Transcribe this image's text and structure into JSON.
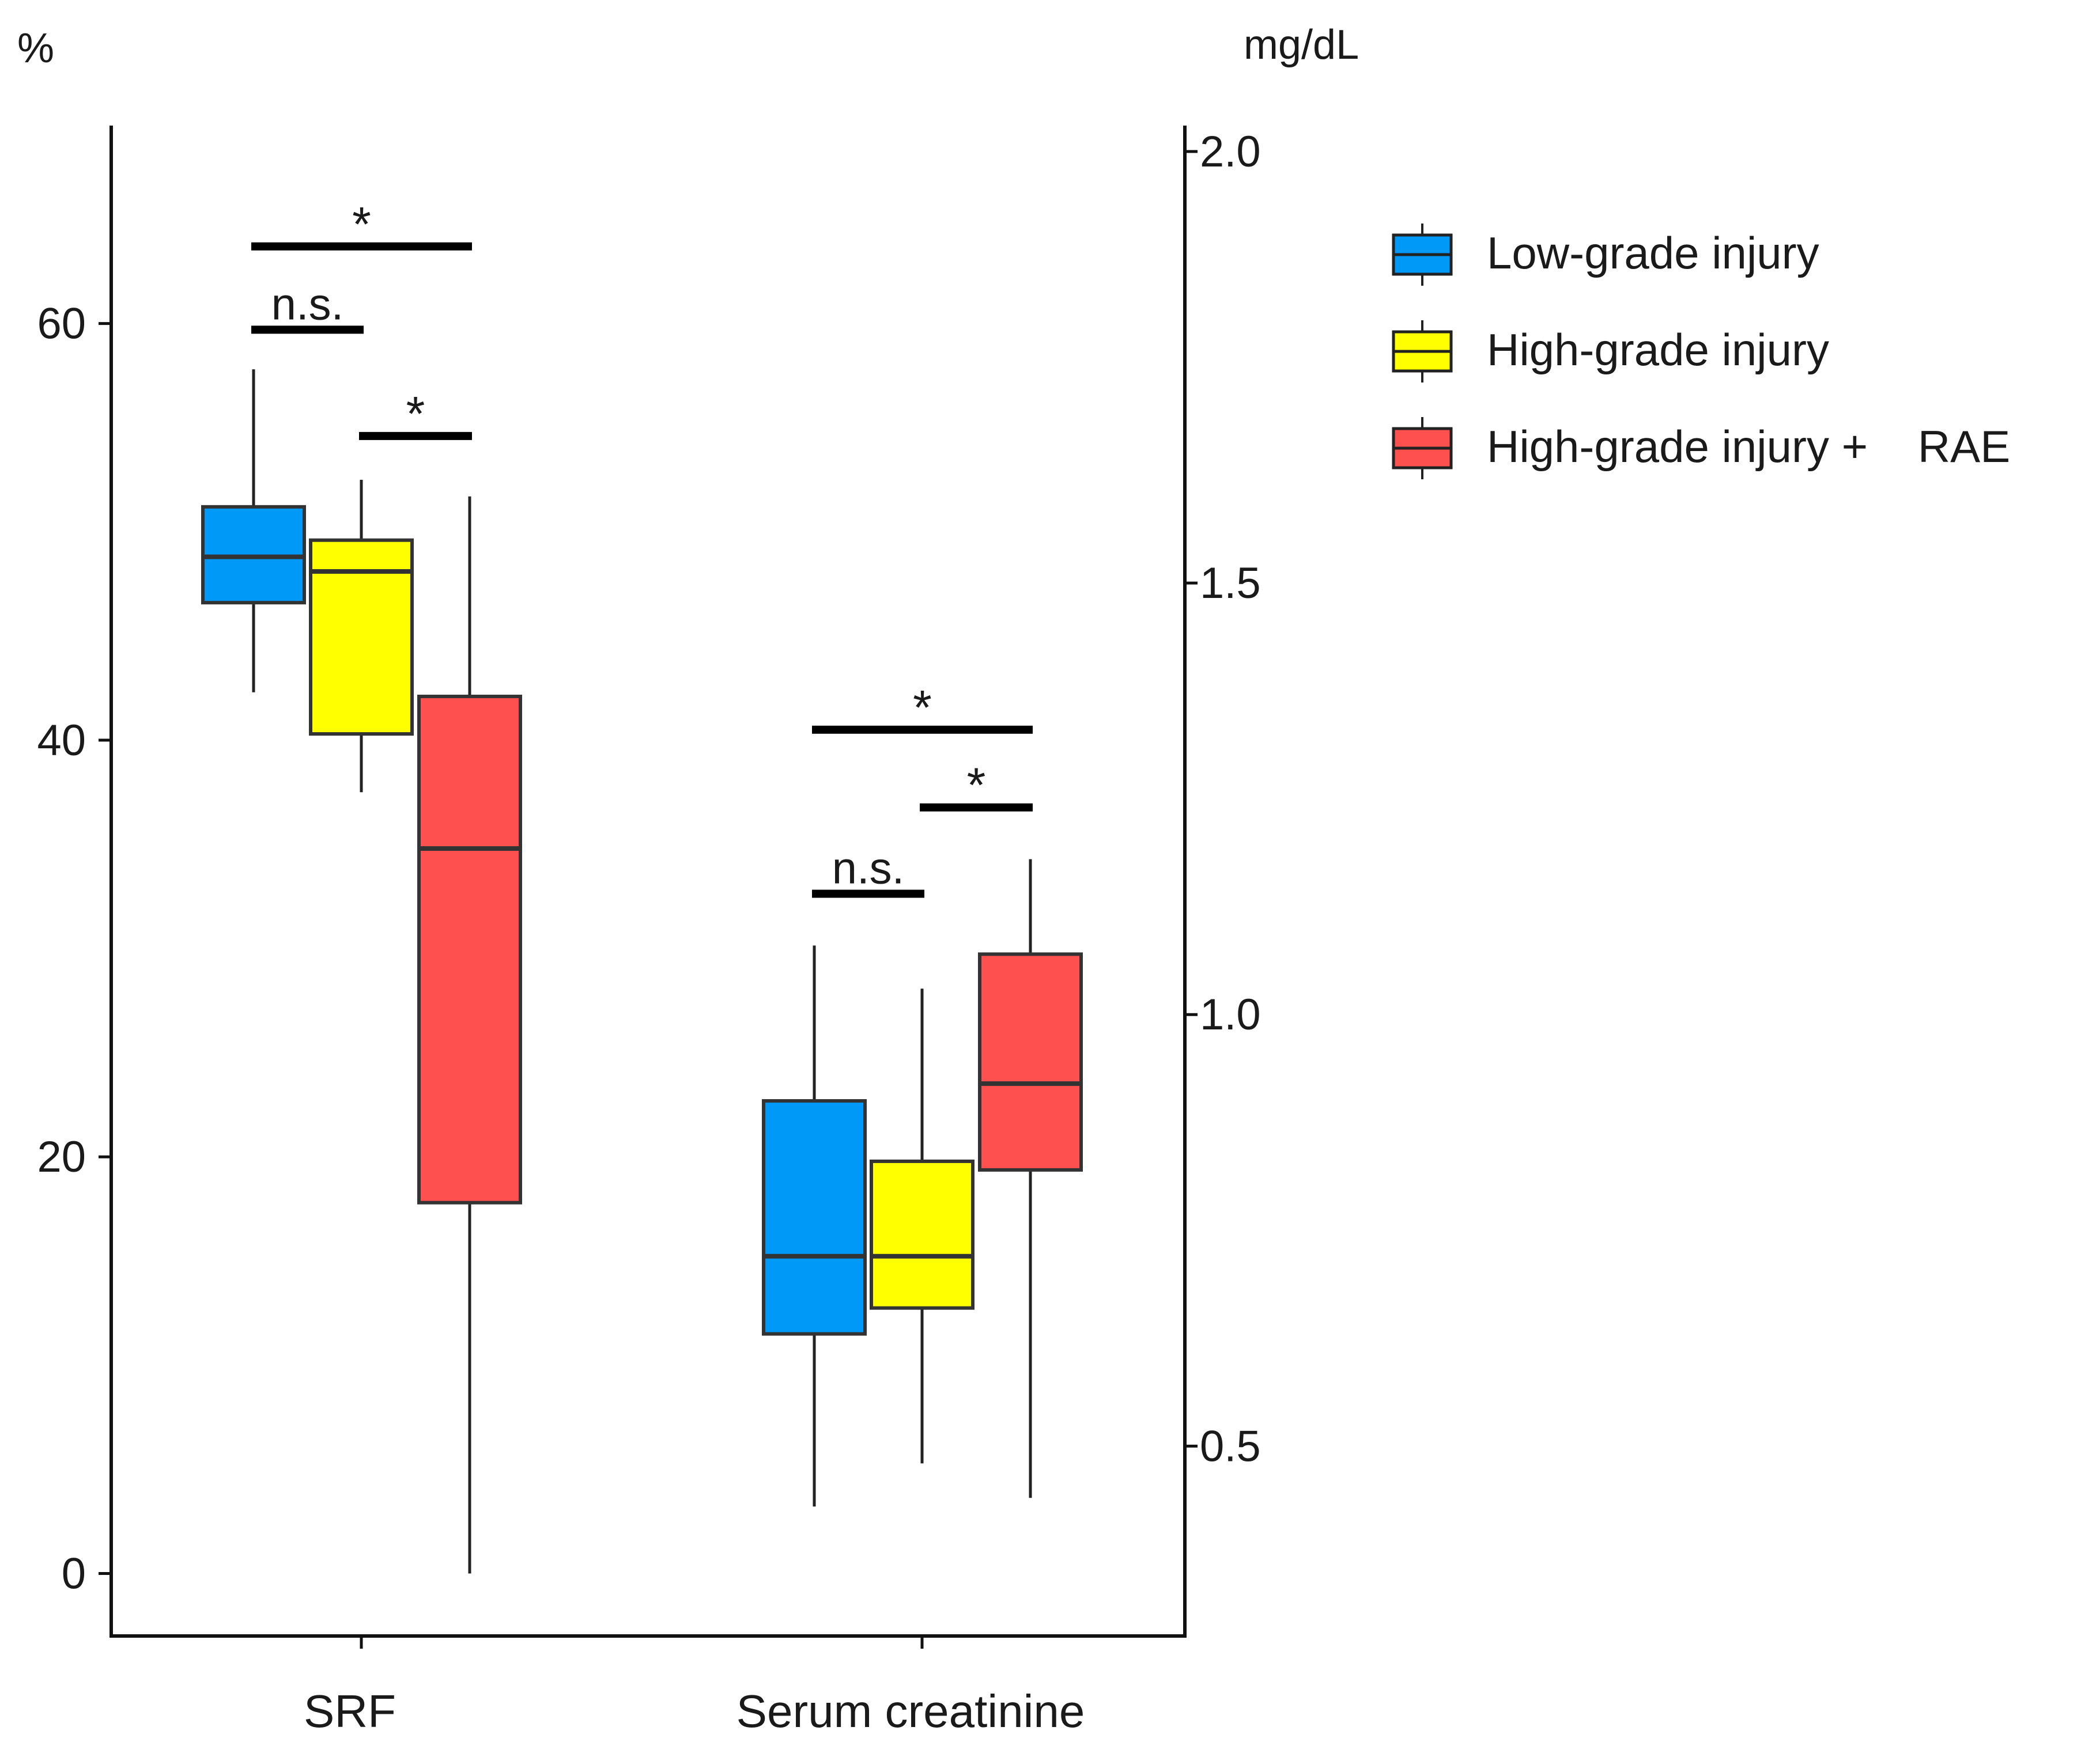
{
  "chart_data": {
    "type": "boxplot",
    "categories": [
      "SRF",
      "Serum creatinine"
    ],
    "left_axis": {
      "unit_label": "%",
      "ticks": [
        0,
        20,
        40,
        60
      ],
      "tick_labels": [
        "0",
        "20",
        "40",
        "60"
      ],
      "range": [
        -3,
        69.5
      ]
    },
    "right_axis": {
      "unit_label": "mg/dL",
      "ticks": [
        0.5,
        1.0,
        1.5,
        2.0
      ],
      "tick_labels": [
        "0.5",
        "1.0",
        "1.5",
        "2.0"
      ],
      "range": [
        0.28,
        2.03
      ]
    },
    "groups": [
      {
        "name": "Low-grade injury",
        "color": "#0099F7"
      },
      {
        "name": "High-grade injury",
        "color": "#FFFF00"
      },
      {
        "name": "High-grade injury +    RAE",
        "color": "#FF5050"
      }
    ],
    "boxes": [
      {
        "category": "SRF",
        "group": "Low-grade injury",
        "axis": "left",
        "min": 42.3,
        "q1": 46.6,
        "median": 48.8,
        "q3": 51.2,
        "max": 57.8
      },
      {
        "category": "SRF",
        "group": "High-grade injury",
        "axis": "left",
        "min": 37.5,
        "q1": 40.3,
        "median": 48.1,
        "q3": 49.6,
        "max": 52.5
      },
      {
        "category": "SRF",
        "group": "High-grade injury +    RAE",
        "axis": "left",
        "min": 0.0,
        "q1": 17.8,
        "median": 34.8,
        "q3": 42.1,
        "max": 51.7
      },
      {
        "category": "Serum creatinine",
        "group": "Low-grade injury",
        "axis": "right",
        "min": 0.43,
        "q1": 0.63,
        "median": 0.72,
        "q3": 0.9,
        "max": 1.08
      },
      {
        "category": "Serum creatinine",
        "group": "High-grade injury",
        "axis": "right",
        "min": 0.48,
        "q1": 0.66,
        "median": 0.72,
        "q3": 0.83,
        "max": 1.03
      },
      {
        "category": "Serum creatinine",
        "group": "High-grade injury +    RAE",
        "axis": "right",
        "min": 0.44,
        "q1": 0.82,
        "median": 0.92,
        "q3": 1.07,
        "max": 1.18
      }
    ],
    "significance": [
      {
        "category": "SRF",
        "from": 0,
        "to": 1,
        "axis": "left",
        "y": 59.7,
        "label": "n.s."
      },
      {
        "category": "SRF",
        "from": 1,
        "to": 2,
        "axis": "left",
        "y": 54.6,
        "label": "*"
      },
      {
        "category": "SRF",
        "from": 0,
        "to": 2,
        "axis": "left",
        "y": 63.7,
        "label": "*"
      },
      {
        "category": "Serum creatinine",
        "from": 0,
        "to": 1,
        "axis": "right",
        "y": 1.14,
        "label": "n.s."
      },
      {
        "category": "Serum creatinine",
        "from": 1,
        "to": 2,
        "axis": "right",
        "y": 1.24,
        "label": "*"
      },
      {
        "category": "Serum creatinine",
        "from": 0,
        "to": 2,
        "axis": "right",
        "y": 1.33,
        "label": "*"
      }
    ],
    "legend_position": "right"
  }
}
